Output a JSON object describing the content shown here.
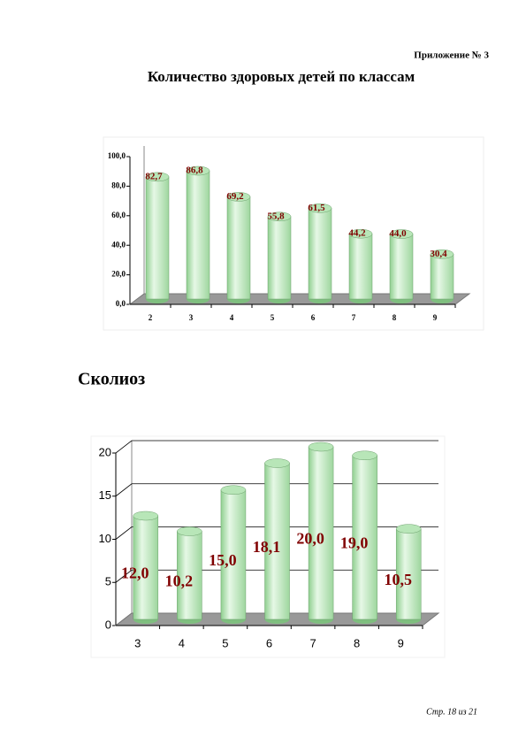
{
  "header": "Приложение № 3",
  "chart_data": [
    {
      "type": "bar",
      "title": "Количество здоровых детей по классам",
      "categories": [
        "2",
        "3",
        "4",
        "5",
        "6",
        "7",
        "8",
        "9"
      ],
      "values": [
        82.7,
        86.8,
        69.2,
        55.8,
        61.5,
        44.2,
        44.0,
        30.4
      ],
      "value_labels": [
        "82,7",
        "86,8",
        "69,2",
        "55,8",
        "61,5",
        "44,2",
        "44,0",
        "30,4"
      ],
      "color": "#b8e6b8",
      "ylim": [
        0,
        100
      ],
      "yticks": [
        {
          "value": 0,
          "label": "0,0"
        },
        {
          "value": 20,
          "label": "20,0"
        },
        {
          "value": 40,
          "label": "40,0"
        },
        {
          "value": 60,
          "label": "60,0"
        },
        {
          "value": 80,
          "label": "80,0"
        },
        {
          "value": 100,
          "label": "100,0"
        }
      ],
      "grid": false
    },
    {
      "type": "bar",
      "title": "Сколиоз",
      "categories": [
        "3",
        "4",
        "5",
        "6",
        "7",
        "8",
        "9"
      ],
      "values": [
        12.0,
        10.2,
        15.0,
        18.1,
        20.0,
        19.0,
        10.5
      ],
      "value_labels": [
        "12,0",
        "10,2",
        "15,0",
        "18,1",
        "20,0",
        "19,0",
        "10,5"
      ],
      "color": "#b8e6b8",
      "ylim": [
        0,
        20
      ],
      "yticks": [
        0,
        5,
        10,
        15,
        20
      ],
      "grid": true
    }
  ],
  "footer": "Стр. 18 из 21"
}
